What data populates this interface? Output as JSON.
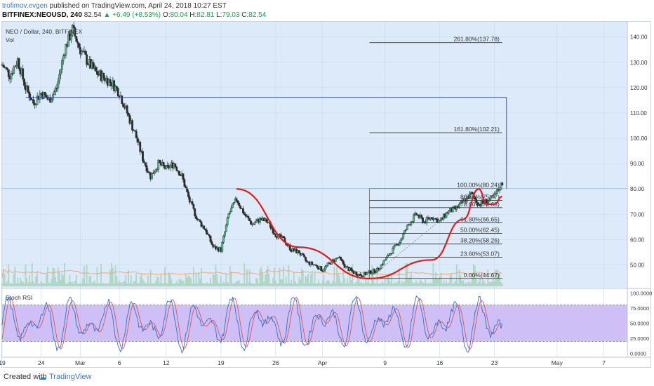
{
  "header": {
    "author": "trofimov.evgen",
    "published": "published on TradingView.com, April 24, 2018 10:27 EST",
    "symbol": "BITFINEX:NEOUSD, 240",
    "last": "82.54",
    "change": "▲ +6.49 (+8.53%)",
    "open_label": "O:",
    "open": "80.04",
    "high_label": "H:",
    "high": "82.81",
    "low_label": "L:",
    "low": "79.03",
    "close_label": "C:",
    "close": "82.54"
  },
  "footer": {
    "created_with": "Created with",
    "brand": "TradingView"
  },
  "colors": {
    "plot_bg": "#dceaf9",
    "candle_up": "#53b987",
    "candle_down": "#2b2b2b",
    "cup_curve": "#e01e1e",
    "fib_line": "#333333",
    "target_line": "#3c4ea8",
    "volume": "#9fcfb0",
    "volume_ma": "#f0a878",
    "rsi_band": "#c5b4f4",
    "stoch_k": "#2f6fd0",
    "stoch_d": "#e05050"
  },
  "chart_data": {
    "type": "candlestick",
    "title": "NEO / Dollar, 240, BITFINEX",
    "volume_label": "Vol",
    "x_ticks": [
      "19",
      "24",
      "Mar",
      "6",
      "12",
      "19",
      "26",
      "Apr",
      "9",
      "16",
      "23",
      "May",
      "7"
    ],
    "x_range_days": [
      "Feb 19, 2018",
      "May 10, 2018"
    ],
    "y_ticks": [
      "140.00",
      "130.00",
      "120.00",
      "110.00",
      "100.00",
      "90.00",
      "80.00",
      "70.00",
      "60.00",
      "50.00"
    ],
    "ylim": [
      41,
      146
    ],
    "price_path": [
      [
        "Feb 19",
        129
      ],
      [
        "Feb 20",
        125
      ],
      [
        "Feb 21",
        131
      ],
      [
        "Feb 22",
        120
      ],
      [
        "Feb 23",
        114
      ],
      [
        "Feb 24",
        118
      ],
      [
        "Feb 25",
        115
      ],
      [
        "Feb 26",
        120
      ],
      [
        "Feb 27",
        135
      ],
      [
        "Feb 28",
        143
      ],
      [
        "Mar 1",
        135
      ],
      [
        "Mar 2",
        130
      ],
      [
        "Mar 3",
        126
      ],
      [
        "Mar 4",
        124
      ],
      [
        "Mar 5",
        122
      ],
      [
        "Mar 6",
        118
      ],
      [
        "Mar 7",
        110
      ],
      [
        "Mar 8",
        102
      ],
      [
        "Mar 9",
        92
      ],
      [
        "Mar 10",
        85
      ],
      [
        "Mar 11",
        90
      ],
      [
        "Mar 12",
        88
      ],
      [
        "Mar 13",
        90
      ],
      [
        "Mar 14",
        85
      ],
      [
        "Mar 15",
        75
      ],
      [
        "Mar 16",
        68
      ],
      [
        "Mar 17",
        64
      ],
      [
        "Mar 18",
        57
      ],
      [
        "Mar 19",
        56
      ],
      [
        "Mar 20",
        70
      ],
      [
        "Mar 21",
        76
      ],
      [
        "Mar 22",
        70
      ],
      [
        "Mar 23",
        66
      ],
      [
        "Mar 24",
        68
      ],
      [
        "Mar 25",
        67
      ],
      [
        "Mar 26",
        62
      ],
      [
        "Mar 27",
        60
      ],
      [
        "Mar 28",
        56
      ],
      [
        "Mar 29",
        55
      ],
      [
        "Mar 30",
        51
      ],
      [
        "Mar 31",
        50
      ],
      [
        "Apr 1",
        48
      ],
      [
        "Apr 2",
        51
      ],
      [
        "Apr 3",
        53
      ],
      [
        "Apr 4",
        49
      ],
      [
        "Apr 5",
        47
      ],
      [
        "Apr 6",
        46
      ],
      [
        "Apr 7",
        47
      ],
      [
        "Apr 8",
        48
      ],
      [
        "Apr 9",
        52
      ],
      [
        "Apr 10",
        56
      ],
      [
        "Apr 11",
        60
      ],
      [
        "Apr 12",
        66
      ],
      [
        "Apr 13",
        70
      ],
      [
        "Apr 14",
        67
      ],
      [
        "Apr 15",
        69
      ],
      [
        "Apr 16",
        67
      ],
      [
        "Apr 17",
        71
      ],
      [
        "Apr 18",
        72
      ],
      [
        "Apr 19",
        75
      ],
      [
        "Apr 20",
        78
      ],
      [
        "Apr 21",
        74
      ],
      [
        "Apr 22",
        75
      ],
      [
        "Apr 23",
        77
      ],
      [
        "Apr 24",
        82.5
      ]
    ],
    "cup_curve": {
      "label": "",
      "points": [
        [
          "Mar 21",
          80
        ],
        [
          "Mar 29",
          57
        ],
        [
          "Apr 7",
          44.6
        ],
        [
          "Apr 15",
          52
        ],
        [
          "Apr 19",
          68
        ],
        [
          "Apr 21",
          80
        ]
      ]
    },
    "handle_curve": {
      "points": [
        [
          "Apr 21",
          80
        ],
        [
          "Apr 22",
          74
        ],
        [
          "Apr 23",
          74
        ],
        [
          "Apr 24",
          77
        ]
      ]
    },
    "fibonacci": {
      "start": "Apr 7",
      "end": "Apr 24",
      "levels": [
        {
          "label": "0.00%(44.67)",
          "value": 44.67
        },
        {
          "label": "23.60%(53.07)",
          "value": 53.07
        },
        {
          "label": "38.20%(58.26)",
          "value": 58.26
        },
        {
          "label": "50.00%(62.45)",
          "value": 62.45
        },
        {
          "label": "61.80%(66.65)",
          "value": 66.65
        },
        {
          "label": "78.60%(72.63)",
          "value": 72.63
        },
        {
          "label": "86.60%(75.47)",
          "value": 75.47
        },
        {
          "label": "100.00%(80.24)",
          "value": 80.24
        },
        {
          "label": "161.80%(102.21)",
          "value": 102.21
        },
        {
          "label": "261.80%(137.78)",
          "value": 137.78
        }
      ]
    },
    "target_line": {
      "value": 116.2,
      "from": "Feb 22",
      "to": "Apr 24"
    },
    "stoch_rsi": {
      "label": "Stoch RSI",
      "ticks": [
        "100.0000",
        "75.0000",
        "50.0000",
        "25.0000",
        "0.0000"
      ],
      "upper_band": 80,
      "lower_band": 20,
      "ylim": [
        -5,
        105
      ]
    }
  }
}
